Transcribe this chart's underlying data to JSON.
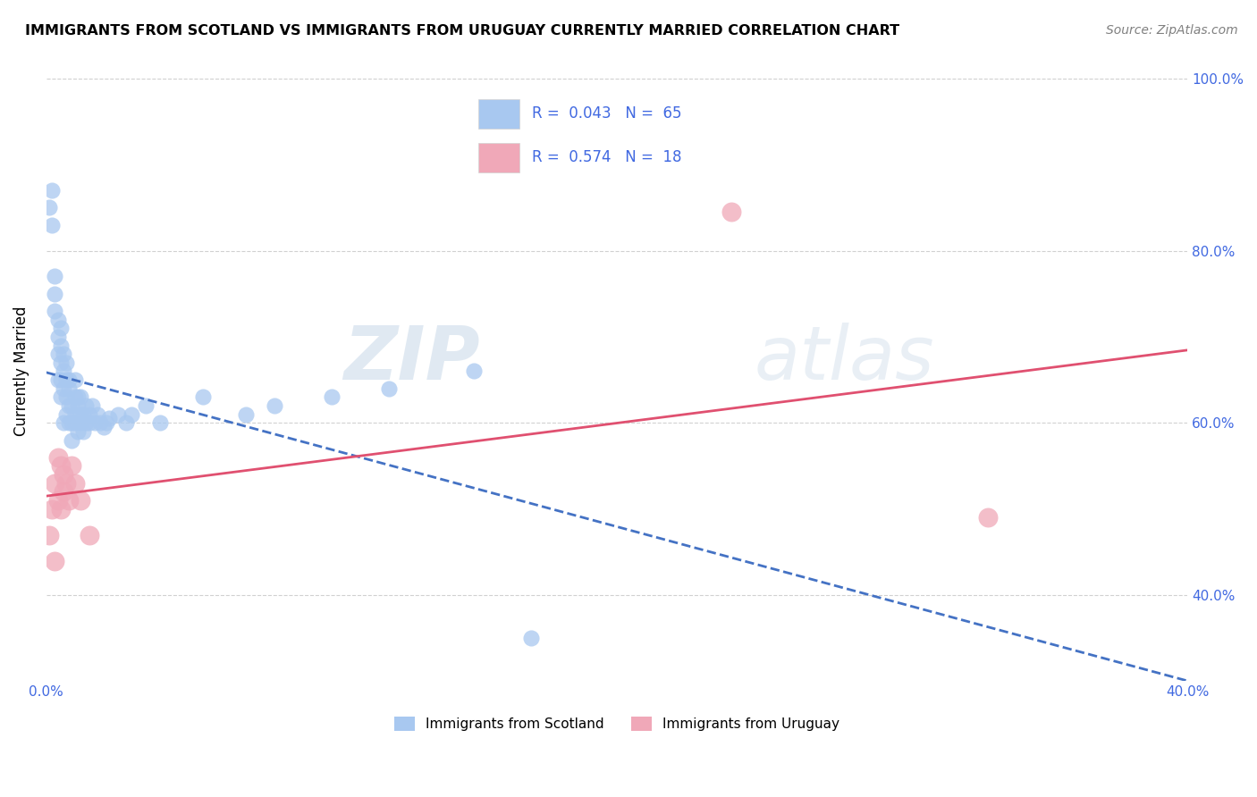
{
  "title": "IMMIGRANTS FROM SCOTLAND VS IMMIGRANTS FROM URUGUAY CURRENTLY MARRIED CORRELATION CHART",
  "source": "Source: ZipAtlas.com",
  "ylabel": "Currently Married",
  "xlim": [
    0.0,
    0.4
  ],
  "ylim": [
    0.3,
    1.02
  ],
  "x_ticks": [
    0.0,
    0.1,
    0.2,
    0.3,
    0.4
  ],
  "x_tick_labels": [
    "0.0%",
    "",
    "",
    "",
    "40.0%"
  ],
  "y_ticks": [
    0.4,
    0.6,
    0.8,
    1.0
  ],
  "y_tick_labels_right": [
    "40.0%",
    "60.0%",
    "80.0%",
    "100.0%"
  ],
  "scotland_R": 0.043,
  "scotland_N": 65,
  "uruguay_R": 0.574,
  "uruguay_N": 18,
  "scotland_color": "#a8c8f0",
  "uruguay_color": "#f0a8b8",
  "scotland_line_color": "#4472C4",
  "uruguay_line_color": "#E05070",
  "tick_color": "#4169E1",
  "watermark_color": "#c8d8e8",
  "scotland_x": [
    0.001,
    0.002,
    0.002,
    0.003,
    0.003,
    0.003,
    0.004,
    0.004,
    0.004,
    0.004,
    0.005,
    0.005,
    0.005,
    0.005,
    0.005,
    0.006,
    0.006,
    0.006,
    0.006,
    0.007,
    0.007,
    0.007,
    0.007,
    0.008,
    0.008,
    0.008,
    0.008,
    0.009,
    0.009,
    0.009,
    0.01,
    0.01,
    0.01,
    0.01,
    0.011,
    0.011,
    0.011,
    0.012,
    0.012,
    0.012,
    0.013,
    0.013,
    0.014,
    0.014,
    0.015,
    0.015,
    0.016,
    0.017,
    0.018,
    0.019,
    0.02,
    0.021,
    0.022,
    0.025,
    0.028,
    0.03,
    0.035,
    0.04,
    0.055,
    0.07,
    0.08,
    0.1,
    0.12,
    0.15,
    0.17
  ],
  "scotland_y": [
    0.85,
    0.87,
    0.83,
    0.73,
    0.75,
    0.77,
    0.68,
    0.7,
    0.72,
    0.65,
    0.67,
    0.69,
    0.71,
    0.65,
    0.63,
    0.66,
    0.68,
    0.64,
    0.6,
    0.63,
    0.65,
    0.61,
    0.67,
    0.65,
    0.62,
    0.6,
    0.64,
    0.6,
    0.62,
    0.58,
    0.6,
    0.63,
    0.61,
    0.65,
    0.62,
    0.59,
    0.63,
    0.6,
    0.61,
    0.63,
    0.61,
    0.59,
    0.62,
    0.6,
    0.61,
    0.6,
    0.62,
    0.6,
    0.61,
    0.6,
    0.595,
    0.6,
    0.605,
    0.61,
    0.6,
    0.61,
    0.62,
    0.6,
    0.63,
    0.61,
    0.62,
    0.63,
    0.64,
    0.66,
    0.35
  ],
  "uruguay_x": [
    0.001,
    0.002,
    0.003,
    0.003,
    0.004,
    0.004,
    0.005,
    0.005,
    0.006,
    0.006,
    0.007,
    0.008,
    0.009,
    0.01,
    0.012,
    0.015,
    0.24,
    0.33
  ],
  "uruguay_y": [
    0.47,
    0.5,
    0.44,
    0.53,
    0.51,
    0.56,
    0.5,
    0.55,
    0.52,
    0.54,
    0.53,
    0.51,
    0.55,
    0.53,
    0.51,
    0.47,
    0.845,
    0.49
  ]
}
